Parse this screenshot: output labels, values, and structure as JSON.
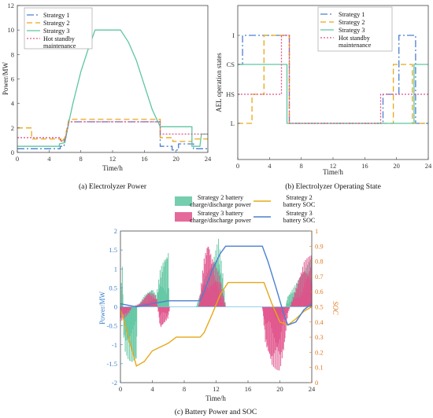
{
  "chart_data": [
    {
      "type": "line",
      "caption": "(a) Electrolyzer Power",
      "xlabel": "Time/h",
      "ylabel": "Power/MW",
      "xlim": [
        0,
        24
      ],
      "ylim": [
        0,
        12
      ],
      "xticks": [
        0,
        4,
        8,
        12,
        16,
        20,
        24
      ],
      "yticks": [
        0,
        2,
        4,
        6,
        8,
        10,
        12
      ],
      "grid": false,
      "legend_position": "top-left",
      "series": [
        {
          "name": "Strategy 1",
          "color": "#4b7fd1",
          "dash": "9,3,2,3",
          "points": [
            [
              0,
              0.3
            ],
            [
              5.4,
              0.3
            ],
            [
              5.4,
              0.5
            ],
            [
              5.9,
              0.5
            ],
            [
              5.9,
              1.0
            ],
            [
              6.2,
              1.5
            ],
            [
              6.5,
              2.5
            ],
            [
              18,
              2.5
            ],
            [
              18,
              0.5
            ],
            [
              19.5,
              0.5
            ],
            [
              19.5,
              0.2
            ],
            [
              20.3,
              0.2
            ],
            [
              20.3,
              0.7
            ],
            [
              22.2,
              0.7
            ],
            [
              22.2,
              0.3
            ],
            [
              24,
              0.3
            ]
          ]
        },
        {
          "name": "Strategy 2",
          "color": "#e6a817",
          "dash": "7,4",
          "points": [
            [
              0,
              2.0
            ],
            [
              1.8,
              2.0
            ],
            [
              1.8,
              1.1
            ],
            [
              5.5,
              1.1
            ],
            [
              5.5,
              0.8
            ],
            [
              6.0,
              1.2
            ],
            [
              6.5,
              2.7
            ],
            [
              18,
              2.7
            ],
            [
              18,
              1.2
            ],
            [
              19.6,
              1.2
            ],
            [
              19.6,
              0.9
            ],
            [
              22,
              0.9
            ],
            [
              22,
              1.1
            ],
            [
              24,
              1.1
            ]
          ]
        },
        {
          "name": "Strategy 3",
          "color": "#5ec6a0",
          "dash": "",
          "points": [
            [
              0,
              0.5
            ],
            [
              5.3,
              0.5
            ],
            [
              5.3,
              0.7
            ],
            [
              6.0,
              0.8
            ],
            [
              6.5,
              2.5
            ],
            [
              7.0,
              4.0
            ],
            [
              8.0,
              6.6
            ],
            [
              9.0,
              8.6
            ],
            [
              9.8,
              10.0
            ],
            [
              13.0,
              10.0
            ],
            [
              14.0,
              9.0
            ],
            [
              15.0,
              7.5
            ],
            [
              16.0,
              5.5
            ],
            [
              17.0,
              3.5
            ],
            [
              18.0,
              2.1
            ],
            [
              22.0,
              2.1
            ],
            [
              22.0,
              0.5
            ],
            [
              23.0,
              0.5
            ],
            [
              23.2,
              1.5
            ],
            [
              24,
              1.5
            ]
          ]
        },
        {
          "name": "Hot standby maintenance",
          "color": "#e0508a",
          "dash": "2,2",
          "points": [
            [
              0,
              1.2
            ],
            [
              5.4,
              1.2
            ],
            [
              5.4,
              0.9
            ],
            [
              6.0,
              1.0
            ],
            [
              6.5,
              2.5
            ],
            [
              18,
              2.5
            ],
            [
              18,
              1.5
            ],
            [
              24,
              1.5
            ]
          ]
        }
      ]
    },
    {
      "type": "line",
      "caption": "(b) Electrolyzer Operating State",
      "xlabel": "Time/h",
      "ylabel": "AEL operation states",
      "xlim": [
        0,
        24
      ],
      "xticks": [
        0,
        4,
        8,
        12,
        16,
        20,
        24
      ],
      "states": [
        "L",
        "HS",
        "CS",
        "I"
      ],
      "grid": false,
      "legend_position": "top-right",
      "series": [
        {
          "name": "Strategy 1",
          "color": "#4b7fd1",
          "dash": "9,3,2,3",
          "points": [
            [
              0,
              2
            ],
            [
              0.6,
              2
            ],
            [
              0.6,
              3
            ],
            [
              6.5,
              3
            ],
            [
              6.5,
              0
            ],
            [
              18.3,
              0
            ],
            [
              18.3,
              1
            ],
            [
              20.3,
              1
            ],
            [
              20.3,
              3
            ],
            [
              22.4,
              3
            ],
            [
              22.4,
              0
            ],
            [
              24,
              0
            ]
          ]
        },
        {
          "name": "Strategy 2",
          "color": "#e6a817",
          "dash": "7,4",
          "points": [
            [
              0,
              0
            ],
            [
              1.8,
              0
            ],
            [
              1.8,
              1
            ],
            [
              3.3,
              1
            ],
            [
              3.3,
              3
            ],
            [
              6.5,
              3
            ],
            [
              6.5,
              0
            ],
            [
              19.6,
              0
            ],
            [
              19.6,
              2
            ],
            [
              22.0,
              2
            ],
            [
              22.0,
              0
            ],
            [
              24,
              0
            ]
          ]
        },
        {
          "name": "Strategy 3",
          "color": "#5ec6a0",
          "dash": "",
          "points": [
            [
              0,
              2
            ],
            [
              6.2,
              2
            ],
            [
              6.2,
              0
            ],
            [
              22.2,
              0
            ],
            [
              22.2,
              2
            ],
            [
              24,
              2
            ]
          ]
        },
        {
          "name": "Hot standby maintenance",
          "color": "#e0508a",
          "dash": "2,2",
          "points": [
            [
              0,
              1
            ],
            [
              5.5,
              1
            ],
            [
              5.5,
              3
            ],
            [
              6.5,
              3
            ],
            [
              6.5,
              0
            ],
            [
              18.0,
              0
            ],
            [
              18.0,
              1
            ],
            [
              24,
              1
            ]
          ]
        }
      ]
    },
    {
      "type": "bar_line_dual_axis",
      "caption": "(c) Battery Power and SOC",
      "xlabel": "Time/h",
      "ylabel": "Power/MW",
      "y2label": "SOC",
      "xlim": [
        0,
        24
      ],
      "ylim": [
        -2,
        2
      ],
      "y2lim": [
        0,
        1
      ],
      "xticks": [
        0,
        4,
        8,
        12,
        16,
        20,
        24
      ],
      "yticks": [
        -2,
        -1.5,
        -1,
        -0.5,
        0,
        0.5,
        1,
        1.5,
        2
      ],
      "y2ticks": [
        0,
        0.1,
        0.2,
        0.3,
        0.4,
        0.5,
        0.6,
        0.7,
        0.8,
        0.9,
        1
      ],
      "legend_position": "top-center",
      "power_series": [
        {
          "name": "Strategy 2 battery charge/discharge power",
          "color": "#5ec6a0",
          "envelope": [
            [
              0,
              -0.6
            ],
            [
              0.2,
              1.6
            ],
            [
              0.4,
              -0.8
            ],
            [
              0.6,
              -1.2
            ],
            [
              1.0,
              -1.4
            ],
            [
              1.5,
              -1.5
            ],
            [
              2.0,
              -1.5
            ],
            [
              2.1,
              0
            ],
            [
              3.0,
              0.3
            ],
            [
              4.0,
              0.5
            ],
            [
              4.5,
              0.3
            ],
            [
              5.0,
              1.0
            ],
            [
              5.5,
              1.3
            ],
            [
              6.0,
              1.5
            ],
            [
              6.1,
              0
            ],
            [
              9.5,
              0
            ],
            [
              10.5,
              0.7
            ],
            [
              11.5,
              1.2
            ],
            [
              12.3,
              1.8
            ],
            [
              12.8,
              1.0
            ],
            [
              13.2,
              0
            ],
            [
              19.0,
              0
            ],
            [
              19.5,
              -0.4
            ],
            [
              20.0,
              -0.3
            ],
            [
              20.5,
              -0.2
            ],
            [
              21.0,
              0.3
            ],
            [
              22.0,
              0.6
            ],
            [
              23.0,
              1.0
            ],
            [
              24,
              1.3
            ]
          ]
        },
        {
          "name": "Strategy 3 battery charge/discharge power",
          "color": "#e0508a",
          "envelope": [
            [
              0,
              -0.4
            ],
            [
              0.5,
              -0.3
            ],
            [
              1.0,
              -0.2
            ],
            [
              1.5,
              0
            ],
            [
              2.5,
              0.1
            ],
            [
              3.5,
              0.4
            ],
            [
              4.5,
              0.3
            ],
            [
              5.0,
              -0.6
            ],
            [
              6.0,
              -0.3
            ],
            [
              6.2,
              0
            ],
            [
              9.8,
              0
            ],
            [
              10.5,
              1.3
            ],
            [
              11.0,
              1.8
            ],
            [
              11.5,
              1.3
            ],
            [
              12.5,
              0.8
            ],
            [
              13.0,
              0.2
            ],
            [
              13.2,
              0
            ],
            [
              17.8,
              0
            ],
            [
              18.2,
              -1.0
            ],
            [
              19.0,
              -1.6
            ],
            [
              20.0,
              -1.7
            ],
            [
              20.5,
              -1.2
            ],
            [
              21.0,
              -0.2
            ],
            [
              22.0,
              0.5
            ],
            [
              23.0,
              1.2
            ],
            [
              24,
              1.4
            ]
          ]
        }
      ],
      "soc_series": [
        {
          "name": "Strategy 2 battery SOC",
          "color": "#e6a817",
          "axis": "right",
          "points": [
            [
              0,
              0.48
            ],
            [
              0.5,
              0.4
            ],
            [
              1.0,
              0.3
            ],
            [
              2.0,
              0.11
            ],
            [
              3.0,
              0.14
            ],
            [
              4.0,
              0.21
            ],
            [
              6.0,
              0.26
            ],
            [
              7.0,
              0.3
            ],
            [
              10.0,
              0.3
            ],
            [
              10.5,
              0.33
            ],
            [
              11.5,
              0.45
            ],
            [
              12.5,
              0.58
            ],
            [
              13.5,
              0.66
            ],
            [
              18.0,
              0.66
            ],
            [
              19.0,
              0.52
            ],
            [
              20.0,
              0.4
            ],
            [
              21.0,
              0.38
            ],
            [
              22.0,
              0.42
            ],
            [
              23.0,
              0.47
            ],
            [
              24.0,
              0.5
            ]
          ]
        },
        {
          "name": "Strategy 3 battery SOC",
          "color": "#4b7fd1",
          "axis": "right",
          "points": [
            [
              0,
              0.52
            ],
            [
              1.0,
              0.51
            ],
            [
              2.0,
              0.5
            ],
            [
              3.0,
              0.51
            ],
            [
              4.0,
              0.52
            ],
            [
              5.0,
              0.53
            ],
            [
              6.0,
              0.54
            ],
            [
              10.0,
              0.54
            ],
            [
              10.5,
              0.6
            ],
            [
              11.5,
              0.74
            ],
            [
              12.5,
              0.85
            ],
            [
              13.2,
              0.9
            ],
            [
              17.8,
              0.9
            ],
            [
              18.5,
              0.8
            ],
            [
              19.5,
              0.63
            ],
            [
              20.5,
              0.45
            ],
            [
              21.0,
              0.38
            ],
            [
              22.0,
              0.4
            ],
            [
              23.0,
              0.48
            ],
            [
              24.0,
              0.52
            ]
          ]
        }
      ]
    }
  ]
}
